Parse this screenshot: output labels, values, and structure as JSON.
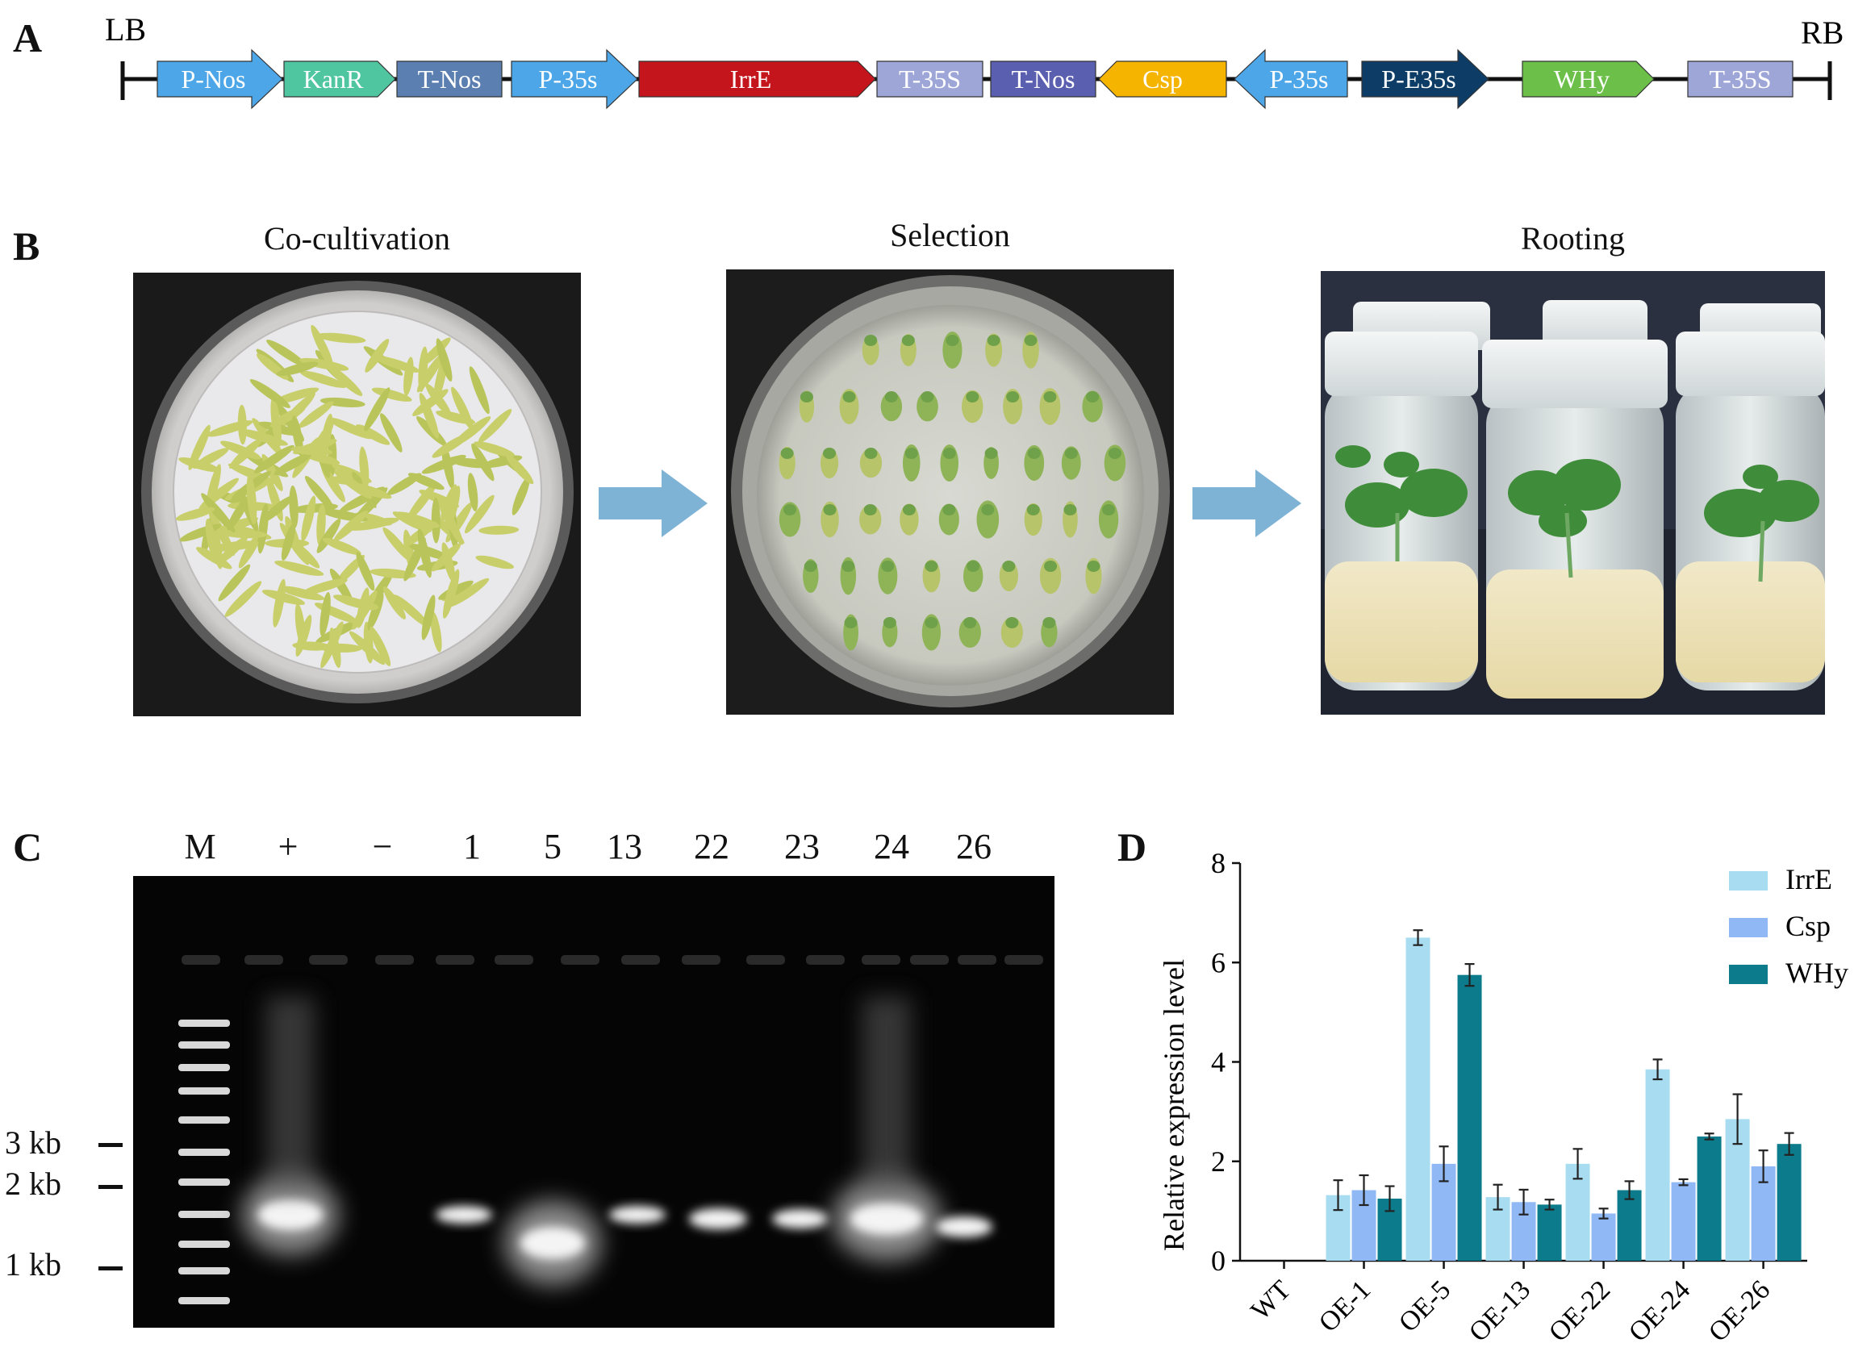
{
  "panels": {
    "A": {
      "letter": "A"
    },
    "B": {
      "letter": "B"
    },
    "C": {
      "letter": "C"
    },
    "D": {
      "letter": "D"
    }
  },
  "construct": {
    "left_border": "LB",
    "right_border": "RB",
    "elements": [
      {
        "label": "P-Nos",
        "shape": "arrow-right",
        "color": "#4da6e8"
      },
      {
        "label": "KanR",
        "shape": "arrow-right",
        "color": "#4fc6a0"
      },
      {
        "label": "T-Nos",
        "shape": "box",
        "color": "#5b7fb0"
      },
      {
        "label": "P-35s",
        "shape": "arrow-right",
        "color": "#4da6e8"
      },
      {
        "label": "IrrE",
        "shape": "arrow-right",
        "color": "#c4141c"
      },
      {
        "label": "T-35S",
        "shape": "box",
        "color": "#9ea6d8"
      },
      {
        "label": "T-Nos",
        "shape": "box",
        "color": "#5b5fb0"
      },
      {
        "label": "Csp",
        "shape": "arrow-both",
        "color": "#f5b400"
      },
      {
        "label": "P-35s",
        "shape": "arrow-left",
        "color": "#4da6e8"
      },
      {
        "label": "P-E35s",
        "shape": "arrow-right",
        "color": "#0d3d66"
      },
      {
        "label": "WHy",
        "shape": "arrow-right",
        "color": "#6cc04a"
      },
      {
        "label": "T-35S",
        "shape": "box",
        "color": "#9ea6d8"
      }
    ]
  },
  "transformation": {
    "steps": [
      {
        "title": "Co-cultivation"
      },
      {
        "title": "Selection"
      },
      {
        "title": "Rooting"
      }
    ],
    "arrow_color": "#7fb3d6"
  },
  "gel": {
    "lanes": [
      "M",
      "+",
      "−",
      "1",
      "5",
      "13",
      "22",
      "23",
      "24",
      "26"
    ],
    "markers": [
      "3 kb",
      "2 kb",
      "1 kb"
    ]
  },
  "chart_data": {
    "type": "bar",
    "title": "",
    "xlabel": "",
    "ylabel": "Relative expression level",
    "ylim": [
      0,
      8
    ],
    "yticks": [
      0,
      2,
      4,
      6,
      8
    ],
    "categories": [
      "WT",
      "OE-1",
      "OE-5",
      "OE-13",
      "OE-22",
      "OE-24",
      "OE-26"
    ],
    "legend_position": "top-right",
    "series": [
      {
        "name": "IrrE",
        "color": "#a8dcf0",
        "values": [
          0,
          1.32,
          6.5,
          1.28,
          1.95,
          3.85,
          2.85
        ],
        "errors": [
          0,
          0.3,
          0.15,
          0.25,
          0.3,
          0.2,
          0.5
        ]
      },
      {
        "name": "Csp",
        "color": "#8fb8f5",
        "values": [
          0,
          1.42,
          1.95,
          1.18,
          0.95,
          1.58,
          1.9
        ],
        "errors": [
          0,
          0.3,
          0.35,
          0.25,
          0.1,
          0.06,
          0.32
        ]
      },
      {
        "name": "WHy",
        "color": "#0c7c8c",
        "values": [
          0,
          1.25,
          5.75,
          1.13,
          1.42,
          2.5,
          2.35
        ],
        "errors": [
          0,
          0.25,
          0.22,
          0.1,
          0.18,
          0.06,
          0.22
        ]
      }
    ]
  }
}
